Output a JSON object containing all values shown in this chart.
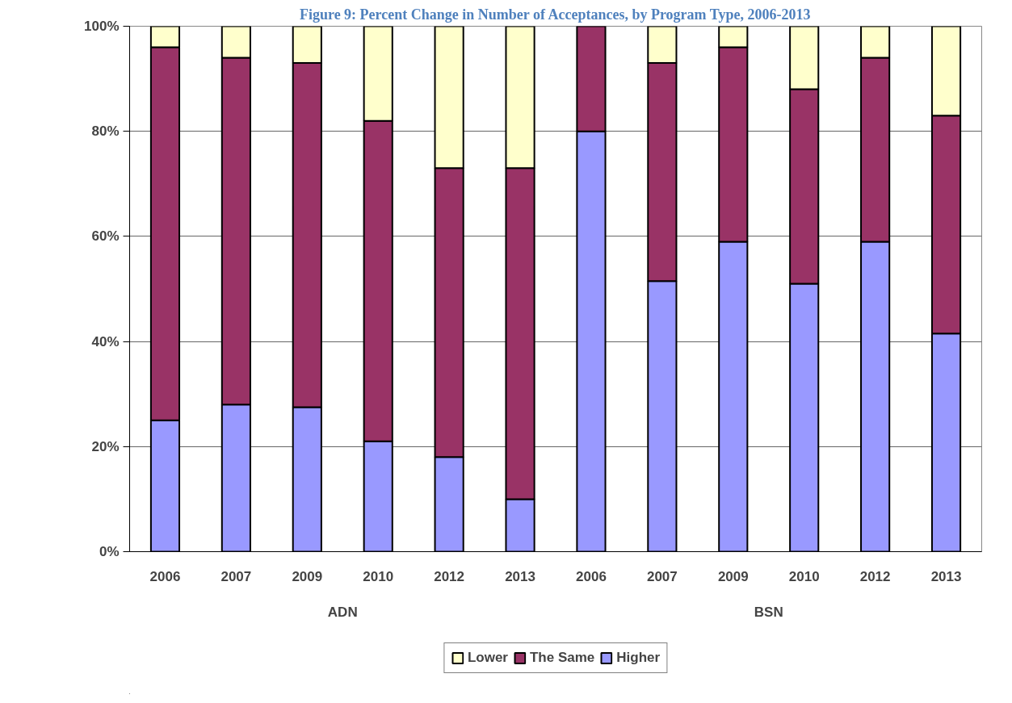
{
  "chart_data": {
    "type": "bar",
    "title": "Figure 9: Percent Change in Number of Acceptances, by Program Type, 2006-2013",
    "categories": [
      "2006",
      "2007",
      "2009",
      "2010",
      "2012",
      "2013",
      "2006",
      "2007",
      "2009",
      "2010",
      "2012",
      "2013"
    ],
    "annotations": [
      "ADN",
      "BSN"
    ],
    "stacked": true,
    "series": [
      {
        "name": "Higher",
        "color": "#9999ff",
        "values": [
          25,
          28,
          27.5,
          21,
          18,
          10,
          80,
          51.5,
          59,
          51,
          59,
          41.5
        ]
      },
      {
        "name": "The Same",
        "color": "#993366",
        "values": [
          71,
          66,
          65.5,
          61,
          55,
          63,
          20,
          41.5,
          37,
          37,
          35,
          41.5
        ]
      },
      {
        "name": "Lower",
        "color": "#ffffcc",
        "values": [
          4,
          6,
          7,
          18,
          27,
          27,
          0,
          7,
          4,
          12,
          6,
          17
        ]
      }
    ],
    "ylim": [
      0,
      100
    ],
    "yticks": [
      {
        "value": 0,
        "label": "0%"
      },
      {
        "value": 20,
        "label": "20%"
      },
      {
        "value": 40,
        "label": "40%"
      },
      {
        "value": 60,
        "label": "60%"
      },
      {
        "value": 80,
        "label": "80%"
      },
      {
        "value": 100,
        "label": "100%"
      }
    ],
    "grid": "y",
    "legend": "bottom"
  }
}
